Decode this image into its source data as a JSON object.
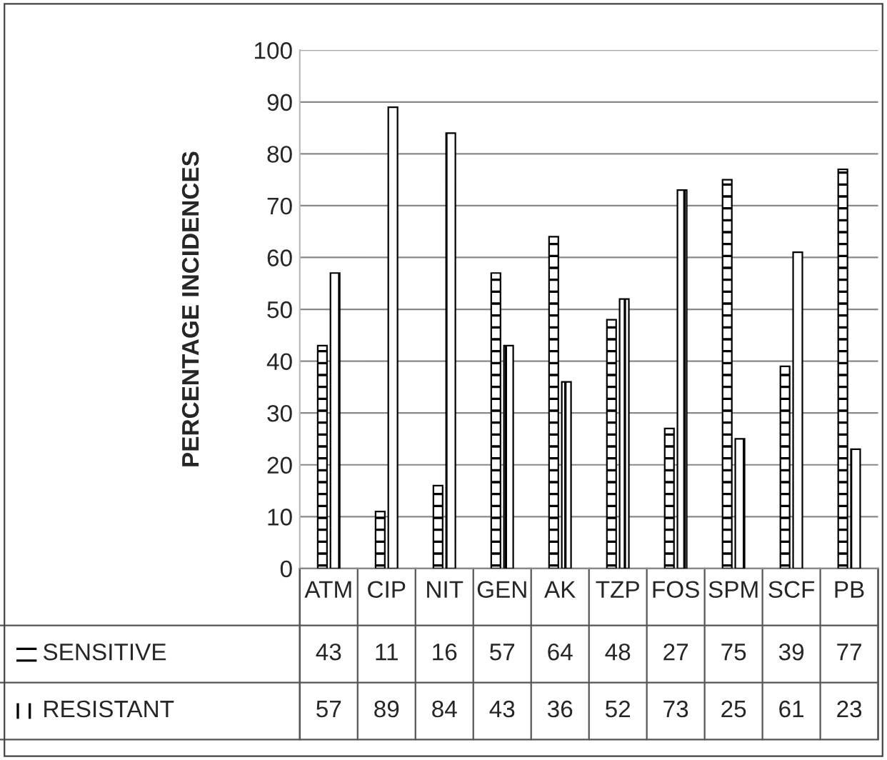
{
  "chart_data": {
    "type": "bar",
    "ylabel": "PERCENTAGE INCIDENCES",
    "categories": [
      "ATM",
      "CIP",
      "NIT",
      "GEN",
      "AK",
      "TZP",
      "FOS",
      "SPM",
      "SCF",
      "PB"
    ],
    "series": [
      {
        "name": "SENSITIVE",
        "color": "#000000",
        "values": [
          43,
          11,
          16,
          57,
          64,
          48,
          27,
          75,
          39,
          77
        ]
      },
      {
        "name": "RESISTANT",
        "color": "#000000",
        "values": [
          57,
          89,
          84,
          43,
          36,
          52,
          73,
          25,
          61,
          23
        ]
      }
    ],
    "ylim": [
      0,
      100
    ],
    "yticks": [
      0,
      10,
      20,
      30,
      40,
      50,
      60,
      70,
      80,
      90,
      100
    ],
    "grid": "y",
    "legend": "bottom",
    "data_labels": true
  }
}
